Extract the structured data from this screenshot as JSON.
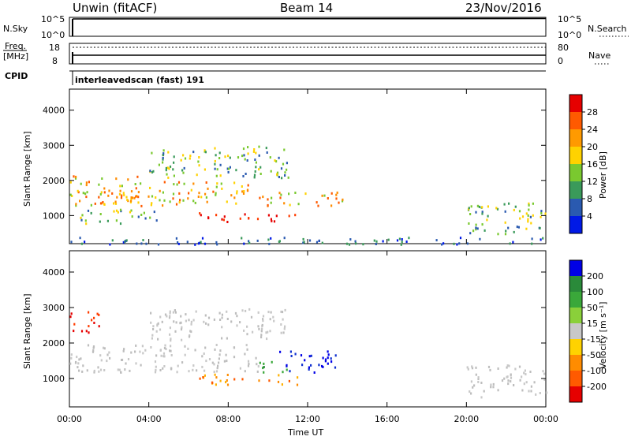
{
  "header": {
    "radar": "Unwin (fitACF)",
    "beam": "Beam 14",
    "date": "23/Nov/2016"
  },
  "top_panels": {
    "nsky_label": "N.Sky",
    "nsky_ticks": [
      "10^5",
      "10^0"
    ],
    "nsearch_label": "N.Search",
    "nsearch_ticks": [
      "10^5",
      "10^0"
    ],
    "freq_label_1": "Freq.",
    "freq_label_2": "[MHz]",
    "freq_ticks": [
      "18",
      "8"
    ],
    "nave_label": "Nave",
    "nave_ticks": [
      "80",
      "0"
    ],
    "cpid_label": "CPID",
    "cpid_text": "interleavedscan (fast) 191"
  },
  "x_axis": {
    "label": "Time UT",
    "ticks": [
      "00:00",
      "04:00",
      "08:00",
      "12:00",
      "16:00",
      "20:00",
      "00:00"
    ]
  },
  "chart_data": [
    {
      "type": "heatmap",
      "name": "power",
      "ylabel": "Slant Range [km]",
      "ylim": [
        200,
        4600
      ],
      "yticks": [
        "4000",
        "3000",
        "2000",
        "1000"
      ],
      "xlim_hours": [
        0,
        24
      ],
      "colorbar": {
        "label": "Power [dB]",
        "ticks": [
          "28",
          "24",
          "20",
          "16",
          "12",
          "8",
          "4"
        ],
        "colors": [
          "#e60000",
          "#ff5a00",
          "#ff9a00",
          "#ffd200",
          "#7ac92f",
          "#3a9a5a",
          "#2a5ab0",
          "#0019e6"
        ]
      },
      "echo_regions": [
        {
          "t0": 0.0,
          "t1": 3.5,
          "r0": 1300,
          "r1": 2200,
          "level": "high"
        },
        {
          "t0": 2.5,
          "t1": 9.0,
          "r0": 1300,
          "r1": 2000,
          "level": "high"
        },
        {
          "t0": 6.5,
          "t1": 11.5,
          "r0": 850,
          "r1": 1100,
          "level": "max"
        },
        {
          "t0": 4.0,
          "t1": 11.0,
          "r0": 2100,
          "r1": 3000,
          "level": "mid"
        },
        {
          "t0": 0.5,
          "t1": 4.5,
          "r0": 800,
          "r1": 1200,
          "level": "mid"
        },
        {
          "t0": 9.5,
          "t1": 13.8,
          "r0": 1300,
          "r1": 1700,
          "level": "high"
        },
        {
          "t0": 20.0,
          "t1": 24.0,
          "r0": 500,
          "r1": 1400,
          "level": "mid"
        },
        {
          "t0": 0.0,
          "t1": 24.0,
          "r0": 200,
          "r1": 400,
          "level": "low"
        }
      ]
    },
    {
      "type": "heatmap",
      "name": "velocity",
      "ylabel": "Slant Range [km]",
      "ylim": [
        200,
        4600
      ],
      "yticks": [
        "4000",
        "3000",
        "2000",
        "1000"
      ],
      "xlim_hours": [
        0,
        24
      ],
      "colorbar": {
        "label": "Velocity [m s⁻¹]",
        "ticks": [
          "200",
          "100",
          "50",
          "15",
          "-15",
          "-50",
          "-100",
          "-200"
        ],
        "colors": [
          "#0000e6",
          "#2a8a3a",
          "#3aa83a",
          "#8ad03a",
          "#c8c8c8",
          "#ffd200",
          "#ff8c00",
          "#ff5a00",
          "#e60000"
        ]
      },
      "echo_regions": [
        {
          "t0": 0.0,
          "t1": 9.5,
          "r0": 1200,
          "r1": 2000,
          "level": "gray"
        },
        {
          "t0": 6.5,
          "t1": 11.5,
          "r0": 850,
          "r1": 1150,
          "level": "orange"
        },
        {
          "t0": 10.5,
          "t1": 13.5,
          "r0": 1200,
          "r1": 1800,
          "level": "blue"
        },
        {
          "t0": 9.5,
          "t1": 11.0,
          "r0": 1200,
          "r1": 1500,
          "level": "green"
        },
        {
          "t0": 0.0,
          "t1": 1.5,
          "r0": 2300,
          "r1": 2900,
          "level": "red"
        },
        {
          "t0": 20.0,
          "t1": 24.0,
          "r0": 500,
          "r1": 1400,
          "level": "gray"
        },
        {
          "t0": 4.0,
          "t1": 11.0,
          "r0": 2100,
          "r1": 3000,
          "level": "gray"
        }
      ]
    }
  ]
}
